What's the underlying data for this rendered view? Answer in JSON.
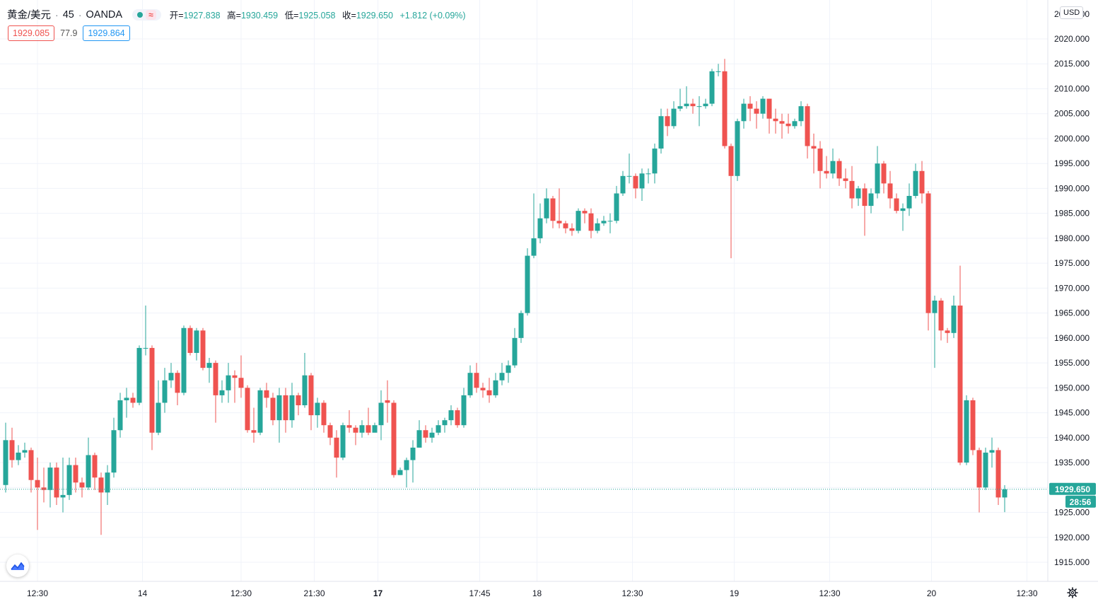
{
  "header": {
    "symbol": "黄金/美元",
    "separator": "·",
    "interval": "45",
    "separator2": "·",
    "broker": "OANDA",
    "wave_icon": "≈",
    "ohlc": {
      "open_label": "开=",
      "open": "1927.838",
      "high_label": "高=",
      "high": "1930.459",
      "low_label": "低=",
      "low": "1925.058",
      "close_label": "收=",
      "close": "1929.650",
      "change": "+1.812 (+0.09%)"
    }
  },
  "quote": {
    "bid": "1929.085",
    "spread": "77.9",
    "ask": "1929.864"
  },
  "currency_label": "USD",
  "last_price_label": "1929.650",
  "countdown": "28:56",
  "colors": {
    "up": "#26a69a",
    "down": "#ef5350",
    "grid": "#f0f3fa",
    "text": "#131722"
  },
  "chart_data": {
    "type": "candlestick",
    "y_axis": {
      "ylim": [
        1911,
        2024
      ],
      "ticks": [
        1915,
        1920,
        1925,
        1930,
        1935,
        1940,
        1945,
        1950,
        1955,
        1960,
        1965,
        1970,
        1975,
        1980,
        1985,
        1990,
        1995,
        2000,
        2005,
        2010,
        2015,
        2020
      ],
      "tick_format": "0.000"
    },
    "x_axis_labels": [
      {
        "label": "12:30",
        "i": 5,
        "bold": false
      },
      {
        "label": "14",
        "i": 21.5,
        "bold": false
      },
      {
        "label": "12:30",
        "i": 37,
        "bold": false
      },
      {
        "label": "21:30",
        "i": 48.5,
        "bold": false
      },
      {
        "label": "17",
        "i": 58.5,
        "bold": true
      },
      {
        "label": "17:45",
        "i": 74.5,
        "bold": false
      },
      {
        "label": "18",
        "i": 83.5,
        "bold": false
      },
      {
        "label": "12:30",
        "i": 98.5,
        "bold": false
      },
      {
        "label": "19",
        "i": 114.5,
        "bold": false
      },
      {
        "label": "12:30",
        "i": 129.5,
        "bold": false
      },
      {
        "label": "20",
        "i": 145.5,
        "bold": false
      },
      {
        "label": "12:30",
        "i": 160.5,
        "bold": false
      }
    ],
    "last_price": 1929.65,
    "candles": [
      [
        1930.5,
        1939.5,
        1943.0,
        1929.0
      ],
      [
        1939.5,
        1935.5,
        1942.0,
        1934.0
      ],
      [
        1935.5,
        1937.0,
        1938.5,
        1934.5
      ],
      [
        1937.0,
        1937.5,
        1939.0,
        1936.0
      ],
      [
        1937.5,
        1931.5,
        1938.0,
        1929.0
      ],
      [
        1931.5,
        1930.0,
        1936.0,
        1921.5
      ],
      [
        1930.0,
        1929.5,
        1934.0,
        1927.0
      ],
      [
        1929.5,
        1934.0,
        1935.0,
        1926.0
      ],
      [
        1934.0,
        1928.0,
        1935.0,
        1926.5
      ],
      [
        1928.0,
        1928.5,
        1936.0,
        1925.0
      ],
      [
        1928.5,
        1934.5,
        1936.0,
        1927.5
      ],
      [
        1934.5,
        1931.0,
        1936.0,
        1929.0
      ],
      [
        1931.0,
        1930.0,
        1932.0,
        1928.0
      ],
      [
        1930.0,
        1936.5,
        1940.0,
        1929.5
      ],
      [
        1936.5,
        1932.0,
        1937.0,
        1929.5
      ],
      [
        1932.0,
        1929.0,
        1933.0,
        1920.5
      ],
      [
        1929.0,
        1933.0,
        1934.5,
        1926.5
      ],
      [
        1933.0,
        1941.5,
        1944.0,
        1932.0
      ],
      [
        1941.5,
        1947.5,
        1949.0,
        1940.0
      ],
      [
        1947.5,
        1948.0,
        1950.0,
        1944.0
      ],
      [
        1948.0,
        1947.0,
        1949.0,
        1946.0
      ],
      [
        1947.0,
        1958.0,
        1958.5,
        1946.5
      ],
      [
        1958.0,
        1958.0,
        1966.5,
        1956.5
      ],
      [
        1958.0,
        1941.0,
        1958.5,
        1937.5
      ],
      [
        1941.0,
        1947.0,
        1951.5,
        1940.5
      ],
      [
        1947.0,
        1951.5,
        1954.0,
        1945.0
      ],
      [
        1951.5,
        1953.0,
        1955.0,
        1950.0
      ],
      [
        1953.0,
        1949.0,
        1953.5,
        1946.5
      ],
      [
        1949.0,
        1962.0,
        1962.5,
        1948.5
      ],
      [
        1962.0,
        1957.0,
        1962.5,
        1956.5
      ],
      [
        1957.0,
        1961.5,
        1962.0,
        1955.5
      ],
      [
        1961.5,
        1954.0,
        1962.0,
        1953.5
      ],
      [
        1954.0,
        1955.0,
        1956.0,
        1951.0
      ],
      [
        1955.0,
        1948.5,
        1955.5,
        1943.0
      ],
      [
        1948.5,
        1949.5,
        1951.5,
        1947.0
      ],
      [
        1949.5,
        1952.5,
        1955.0,
        1947.0
      ],
      [
        1952.5,
        1952.0,
        1953.5,
        1947.0
      ],
      [
        1952.0,
        1950.0,
        1956.5,
        1948.0
      ],
      [
        1950.0,
        1941.5,
        1950.5,
        1941.0
      ],
      [
        1941.5,
        1941.0,
        1946.0,
        1939.0
      ],
      [
        1941.0,
        1949.5,
        1950.0,
        1940.5
      ],
      [
        1949.5,
        1948.0,
        1951.0,
        1946.0
      ],
      [
        1948.0,
        1943.5,
        1949.0,
        1942.5
      ],
      [
        1943.5,
        1948.5,
        1950.0,
        1939.0
      ],
      [
        1948.5,
        1943.5,
        1950.0,
        1941.0
      ],
      [
        1943.5,
        1948.5,
        1951.0,
        1942.0
      ],
      [
        1948.5,
        1946.5,
        1949.0,
        1944.5
      ],
      [
        1946.5,
        1952.5,
        1957.0,
        1946.0
      ],
      [
        1952.5,
        1944.5,
        1953.0,
        1941.5
      ],
      [
        1944.5,
        1947.0,
        1948.0,
        1942.0
      ],
      [
        1947.0,
        1942.5,
        1947.5,
        1941.0
      ],
      [
        1942.5,
        1940.0,
        1943.0,
        1938.5
      ],
      [
        1940.0,
        1936.0,
        1941.5,
        1932.0
      ],
      [
        1936.0,
        1942.5,
        1943.0,
        1935.5
      ],
      [
        1942.5,
        1942.0,
        1945.5,
        1941.0
      ],
      [
        1942.0,
        1941.0,
        1942.5,
        1938.5
      ],
      [
        1941.0,
        1942.5,
        1943.5,
        1940.0
      ],
      [
        1942.5,
        1941.0,
        1946.0,
        1940.5
      ],
      [
        1941.0,
        1942.5,
        1943.0,
        1941.5
      ],
      [
        1942.5,
        1947.0,
        1949.5,
        1939.5
      ],
      [
        1947.5,
        1947.0,
        1951.5,
        1943.0
      ],
      [
        1947.0,
        1932.5,
        1947.5,
        1932.0
      ],
      [
        1932.5,
        1933.5,
        1934.0,
        1932.5
      ],
      [
        1933.5,
        1935.5,
        1936.0,
        1930.0
      ],
      [
        1935.5,
        1938.0,
        1939.5,
        1931.0
      ],
      [
        1938.0,
        1941.5,
        1943.5,
        1938.0
      ],
      [
        1941.5,
        1940.0,
        1942.5,
        1939.0
      ],
      [
        1940.0,
        1941.0,
        1942.0,
        1939.0
      ],
      [
        1941.0,
        1942.5,
        1943.5,
        1940.5
      ],
      [
        1942.5,
        1943.5,
        1944.0,
        1941.0
      ],
      [
        1943.5,
        1945.5,
        1946.5,
        1942.5
      ],
      [
        1945.5,
        1942.5,
        1946.0,
        1942.0
      ],
      [
        1942.5,
        1948.5,
        1950.0,
        1942.0
      ],
      [
        1948.5,
        1953.0,
        1954.5,
        1948.0
      ],
      [
        1953.0,
        1950.0,
        1955.0,
        1949.0
      ],
      [
        1950.0,
        1949.5,
        1951.0,
        1948.0
      ],
      [
        1949.5,
        1948.5,
        1952.0,
        1947.0
      ],
      [
        1948.5,
        1951.5,
        1953.0,
        1948.0
      ],
      [
        1951.5,
        1953.0,
        1955.0,
        1950.5
      ],
      [
        1953.0,
        1954.5,
        1955.5,
        1951.0
      ],
      [
        1954.5,
        1960.0,
        1962.0,
        1954.0
      ],
      [
        1960.0,
        1965.0,
        1965.5,
        1959.0
      ],
      [
        1965.0,
        1976.5,
        1978.0,
        1964.5
      ],
      [
        1976.5,
        1980.0,
        1989.0,
        1976.0
      ],
      [
        1980.0,
        1984.0,
        1987.0,
        1979.0
      ],
      [
        1984.0,
        1988.0,
        1990.0,
        1983.0
      ],
      [
        1988.0,
        1983.5,
        1988.5,
        1982.0
      ],
      [
        1983.5,
        1983.0,
        1990.0,
        1982.0
      ],
      [
        1983.0,
        1982.0,
        1983.5,
        1981.0
      ],
      [
        1982.0,
        1981.5,
        1983.0,
        1980.5
      ],
      [
        1981.5,
        1985.5,
        1986.0,
        1981.0
      ],
      [
        1985.5,
        1985.0,
        1986.0,
        1983.0
      ],
      [
        1985.0,
        1981.5,
        1986.0,
        1980.0
      ],
      [
        1981.5,
        1983.0,
        1984.0,
        1981.0
      ],
      [
        1983.0,
        1983.5,
        1984.5,
        1982.5
      ],
      [
        1983.5,
        1983.5,
        1985.0,
        1981.0
      ],
      [
        1983.5,
        1989.0,
        1990.5,
        1983.0
      ],
      [
        1989.0,
        1992.5,
        1993.5,
        1988.5
      ],
      [
        1992.5,
        1992.5,
        1997.0,
        1991.0
      ],
      [
        1992.5,
        1990.0,
        1993.0,
        1988.0
      ],
      [
        1990.0,
        1993.0,
        1994.0,
        1987.5
      ],
      [
        1993.0,
        1993.0,
        1994.0,
        1991.0
      ],
      [
        1993.0,
        1998.0,
        1999.0,
        1991.0
      ],
      [
        1998.0,
        2004.5,
        2006.0,
        1997.0
      ],
      [
        2004.5,
        2002.5,
        2006.0,
        2000.5
      ],
      [
        2002.5,
        2006.0,
        2007.5,
        2002.0
      ],
      [
        2006.0,
        2006.5,
        2010.0,
        2005.5
      ],
      [
        2006.5,
        2007.0,
        2010.5,
        2006.0
      ],
      [
        2007.0,
        2006.5,
        2008.0,
        2005.0
      ],
      [
        2006.5,
        2006.5,
        2008.5,
        2002.5
      ],
      [
        2006.5,
        2007.0,
        2008.0,
        2006.0
      ],
      [
        2007.0,
        2013.5,
        2014.0,
        2006.5
      ],
      [
        2013.5,
        2013.5,
        2015.0,
        2012.5
      ],
      [
        2013.5,
        1998.5,
        2016.0,
        1998.0
      ],
      [
        1998.5,
        1992.5,
        1999.0,
        1976.0
      ],
      [
        1992.5,
        2003.5,
        2004.0,
        1991.5
      ],
      [
        2003.5,
        2007.0,
        2008.0,
        2002.0
      ],
      [
        2007.0,
        2006.0,
        2008.5,
        2003.5
      ],
      [
        2006.0,
        2005.0,
        2007.5,
        2002.0
      ],
      [
        2005.0,
        2008.0,
        2008.5,
        2004.0
      ],
      [
        2008.0,
        2004.0,
        2008.0,
        2001.0
      ],
      [
        2004.0,
        2003.5,
        2006.0,
        2001.0
      ],
      [
        2003.5,
        2003.0,
        2005.0,
        2000.0
      ],
      [
        2003.0,
        2002.5,
        2005.0,
        2001.0
      ],
      [
        2002.5,
        2003.5,
        2004.0,
        2002.0
      ],
      [
        2003.5,
        2006.5,
        2007.5,
        2002.5
      ],
      [
        2006.5,
        1998.5,
        2007.0,
        1996.0
      ],
      [
        1998.5,
        1998.0,
        2001.0,
        1993.0
      ],
      [
        1998.0,
        1993.5,
        1999.5,
        1990.0
      ],
      [
        1993.5,
        1993.0,
        1996.5,
        1992.0
      ],
      [
        1993.0,
        1995.5,
        1998.0,
        1992.0
      ],
      [
        1995.5,
        1992.0,
        1996.0,
        1990.5
      ],
      [
        1992.0,
        1991.5,
        1994.0,
        1990.0
      ],
      [
        1991.5,
        1988.0,
        1994.5,
        1986.0
      ],
      [
        1988.0,
        1990.0,
        1990.5,
        1986.5
      ],
      [
        1990.0,
        1986.5,
        1991.0,
        1980.5
      ],
      [
        1986.5,
        1989.0,
        1990.0,
        1985.0
      ],
      [
        1989.0,
        1995.0,
        1998.5,
        1988.0
      ],
      [
        1995.0,
        1991.0,
        1995.5,
        1989.0
      ],
      [
        1991.0,
        1988.0,
        1993.5,
        1986.0
      ],
      [
        1988.0,
        1985.5,
        1989.0,
        1985.0
      ],
      [
        1985.5,
        1986.0,
        1987.0,
        1981.5
      ],
      [
        1986.0,
        1988.5,
        1991.0,
        1984.5
      ],
      [
        1988.5,
        1993.5,
        1995.0,
        1988.0
      ],
      [
        1993.5,
        1989.0,
        1995.5,
        1987.0
      ],
      [
        1989.0,
        1965.0,
        1989.5,
        1961.5
      ],
      [
        1965.0,
        1967.5,
        1968.5,
        1954.0
      ],
      [
        1967.5,
        1961.5,
        1968.0,
        1959.5
      ],
      [
        1961.5,
        1961.0,
        1962.0,
        1959.0
      ],
      [
        1961.0,
        1966.5,
        1968.5,
        1960.0
      ],
      [
        1966.5,
        1935.0,
        1974.5,
        1934.5
      ],
      [
        1935.0,
        1947.5,
        1948.5,
        1934.5
      ],
      [
        1947.5,
        1937.5,
        1948.0,
        1936.5
      ],
      [
        1937.5,
        1930.0,
        1938.0,
        1925.0
      ],
      [
        1930.0,
        1937.0,
        1938.0,
        1929.5
      ],
      [
        1937.0,
        1937.5,
        1940.0,
        1934.0
      ],
      [
        1937.5,
        1928.0,
        1938.0,
        1926.5
      ],
      [
        1928.0,
        1929.65,
        1930.459,
        1925.058
      ]
    ]
  }
}
